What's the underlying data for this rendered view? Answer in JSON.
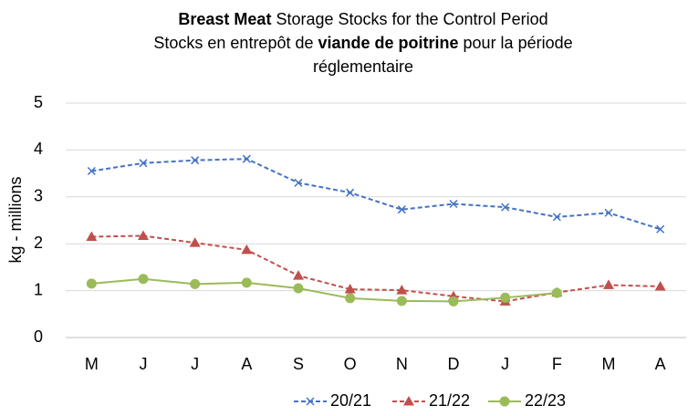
{
  "chart_data": {
    "type": "line",
    "title_lines": [
      [
        {
          "text": "Breast Meat",
          "bold": true
        },
        {
          "text": " Storage Stocks for the Control Period"
        }
      ],
      [
        {
          "text": "Stocks en entrepôt de "
        },
        {
          "text": "viande de poitrine",
          "bold": true
        },
        {
          "text": " pour la période"
        }
      ],
      [
        {
          "text": "réglementaire"
        }
      ]
    ],
    "y_label": "kg - millions",
    "categories": [
      "M",
      "J",
      "J",
      "A",
      "S",
      "O",
      "N",
      "D",
      "J",
      "F",
      "M",
      "A"
    ],
    "ylim": [
      0,
      5
    ],
    "yticks": [
      0,
      1,
      2,
      3,
      4,
      5
    ],
    "grid": true,
    "legend": "bottom",
    "series": [
      {
        "name": "20/21",
        "color": "#4472c4",
        "marker": "x",
        "dash": true,
        "values": [
          3.55,
          3.72,
          3.78,
          3.81,
          3.3,
          3.09,
          2.73,
          2.85,
          2.78,
          2.57,
          2.66,
          2.31
        ]
      },
      {
        "name": "21/22",
        "color": "#c0504d",
        "marker": "triangle",
        "dash": true,
        "values": [
          2.15,
          2.17,
          2.02,
          1.87,
          1.32,
          1.03,
          1.01,
          0.88,
          0.77,
          0.96,
          1.12,
          1.09
        ]
      },
      {
        "name": "22/23",
        "color": "#9bbb59",
        "marker": "circle",
        "dash": false,
        "values": [
          1.15,
          1.25,
          1.14,
          1.17,
          1.05,
          0.84,
          0.78,
          0.77,
          0.85,
          0.95,
          null,
          null
        ]
      }
    ]
  }
}
